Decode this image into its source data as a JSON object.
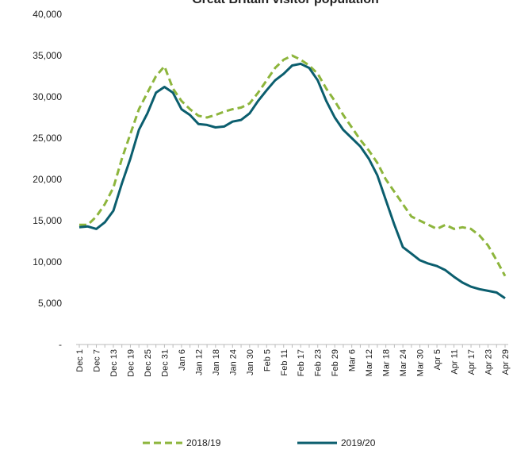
{
  "chart_data": {
    "type": "line",
    "title": "Great Britain visitor population",
    "categories": [
      "Dec 1",
      null,
      "Dec 7",
      null,
      "Dec 13",
      null,
      "Dec 19",
      null,
      "Dec 25",
      null,
      "Dec 31",
      null,
      "Jan 6",
      null,
      "Jan 12",
      null,
      "Jan 18",
      null,
      "Jan 24",
      null,
      "Jan 30",
      null,
      "Feb 5",
      null,
      "Feb 11",
      null,
      "Feb 17",
      null,
      "Feb 23",
      null,
      "Feb 29",
      null,
      "Mar 6",
      null,
      "Mar 12",
      null,
      "Mar 18",
      null,
      "Mar 24",
      null,
      "Mar 30",
      null,
      "Apr 5",
      null,
      "Apr 11",
      null,
      "Apr 17",
      null,
      "Apr 23",
      null,
      "Apr 29"
    ],
    "series": [
      {
        "name": "2018/19",
        "color": "#8db53c",
        "dashed": true,
        "values": [
          14500,
          14500,
          15500,
          17000,
          19000,
          22500,
          25500,
          28500,
          30500,
          32500,
          33700,
          31000,
          29500,
          28500,
          27700,
          27500,
          27800,
          28200,
          28500,
          28700,
          29200,
          30500,
          32000,
          33500,
          34500,
          35000,
          34500,
          33800,
          32800,
          31000,
          29500,
          27800,
          26300,
          24800,
          23500,
          22000,
          20000,
          18500,
          17000,
          15500,
          15000,
          14500,
          14000,
          14500,
          14000,
          14200,
          14000,
          13200,
          12000,
          10200,
          8300
        ]
      },
      {
        "name": "2019/20",
        "color": "#0b5e6e",
        "dashed": false,
        "values": [
          14200,
          14300,
          14000,
          14800,
          16200,
          19500,
          22500,
          26000,
          28000,
          30500,
          31200,
          30500,
          28500,
          27800,
          26700,
          26600,
          26300,
          26400,
          27000,
          27200,
          28000,
          29500,
          30800,
          32000,
          32800,
          33800,
          34000,
          33500,
          32000,
          29500,
          27500,
          26000,
          25000,
          24000,
          22500,
          20500,
          17500,
          14500,
          11800,
          11000,
          10200,
          9800,
          9500,
          9000,
          8200,
          7500,
          7000,
          6700,
          6500,
          6300,
          5600
        ]
      }
    ],
    "ylim": [
      0,
      40000
    ],
    "yticks": [
      {
        "value": 0,
        "label": "-"
      },
      {
        "value": 5000,
        "label": "5,000"
      },
      {
        "value": 10000,
        "label": "10,000"
      },
      {
        "value": 15000,
        "label": "15,000"
      },
      {
        "value": 20000,
        "label": "20,000"
      },
      {
        "value": 25000,
        "label": "25,000"
      },
      {
        "value": 30000,
        "label": "30,000"
      },
      {
        "value": 35000,
        "label": "35,000"
      },
      {
        "value": 40000,
        "label": "40,000"
      }
    ],
    "grid": false,
    "legend": "bottom"
  }
}
